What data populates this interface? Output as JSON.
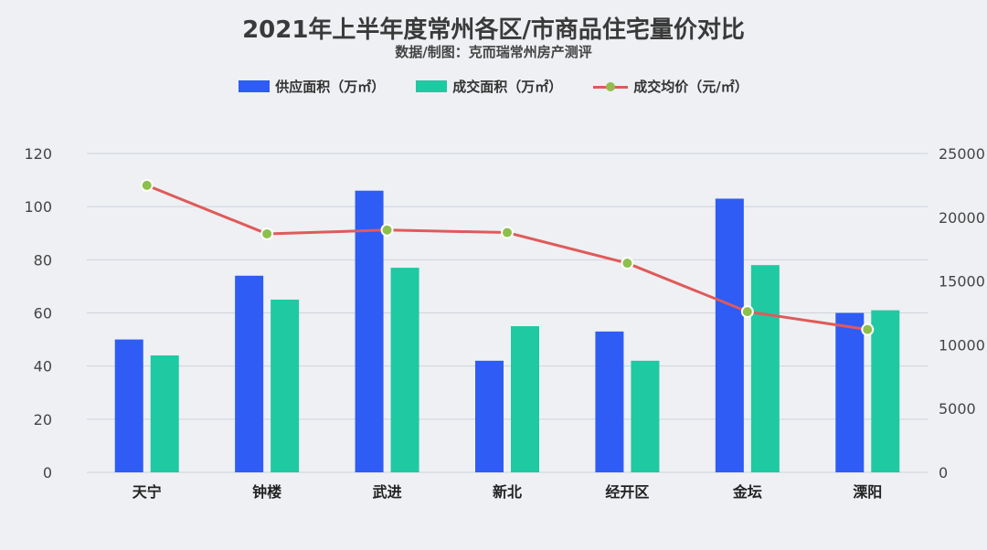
{
  "title": "2021年上半年度常州各区/市商品住宅量价对比",
  "subtitle": "数据/制图：克而瑞常州房产测评",
  "colors": {
    "supply": "#2e5cf5",
    "deal": "#1fc9a2",
    "price_line": "#e05a5a",
    "price_marker": "#8dc04a"
  },
  "chart_data": {
    "type": "bar",
    "categories": [
      "天宁",
      "钟楼",
      "武进",
      "新北",
      "经开区",
      "金坛",
      "溧阳"
    ],
    "series": [
      {
        "name": "供应面积（万㎡）",
        "type": "bar",
        "axis": "left",
        "values": [
          50,
          74,
          106,
          42,
          53,
          103,
          60
        ]
      },
      {
        "name": "成交面积（万㎡）",
        "type": "bar",
        "axis": "left",
        "values": [
          44,
          65,
          77,
          55,
          42,
          78,
          61
        ]
      },
      {
        "name": "成交均价（元/㎡）",
        "type": "line",
        "axis": "right",
        "values": [
          22500,
          18700,
          19000,
          18800,
          16400,
          12600,
          11200
        ]
      }
    ],
    "ylim": [
      0,
      120
    ],
    "yticks": [
      0,
      20,
      40,
      60,
      80,
      100,
      120
    ],
    "y2lim": [
      0,
      25000
    ],
    "y2ticks": [
      0,
      5000,
      10000,
      15000,
      20000,
      25000
    ],
    "grid": true,
    "legend": "top-center"
  }
}
